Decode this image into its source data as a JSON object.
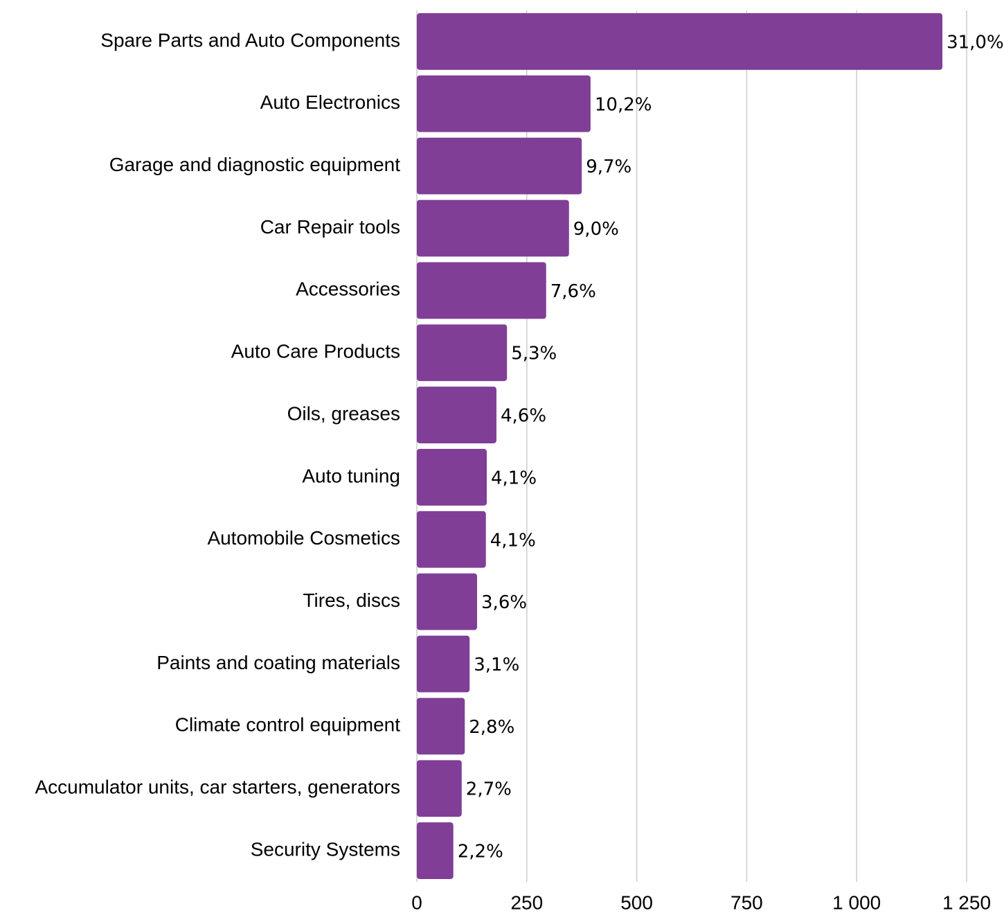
{
  "chart_data": {
    "type": "barh",
    "categories": [
      "Spare Parts and Auto Components",
      "Auto Electronics",
      "Garage and diagnostic equipment",
      "Car Repair tools",
      "Accessories",
      "Auto Care Products",
      "Oils, greases",
      "Auto tuning",
      "Automobile Cosmetics",
      "Tires, discs",
      "Paints and coating materials",
      "Climate control equipment",
      "Accumulator units, car starters, generators",
      "Security Systems"
    ],
    "values": [
      1195,
      395,
      375,
      346,
      294,
      205,
      181,
      159,
      157,
      137,
      120,
      109,
      102,
      83
    ],
    "share_labels": [
      "31,0%",
      "10,2%",
      "9,7%",
      "9,0%",
      "7,6%",
      "5,3%",
      "4,6%",
      "4,1%",
      "4,1%",
      "3,6%",
      "3,1%",
      "2,8%",
      "2,7%",
      "2,2%"
    ],
    "color": "#803e96",
    "xlim": [
      0,
      1250
    ],
    "xticks": [
      0,
      250,
      500,
      750,
      {
        "value": 1000,
        "label": "1 000"
      },
      {
        "value": 1250,
        "label": "1 250"
      }
    ],
    "grid": true
  }
}
